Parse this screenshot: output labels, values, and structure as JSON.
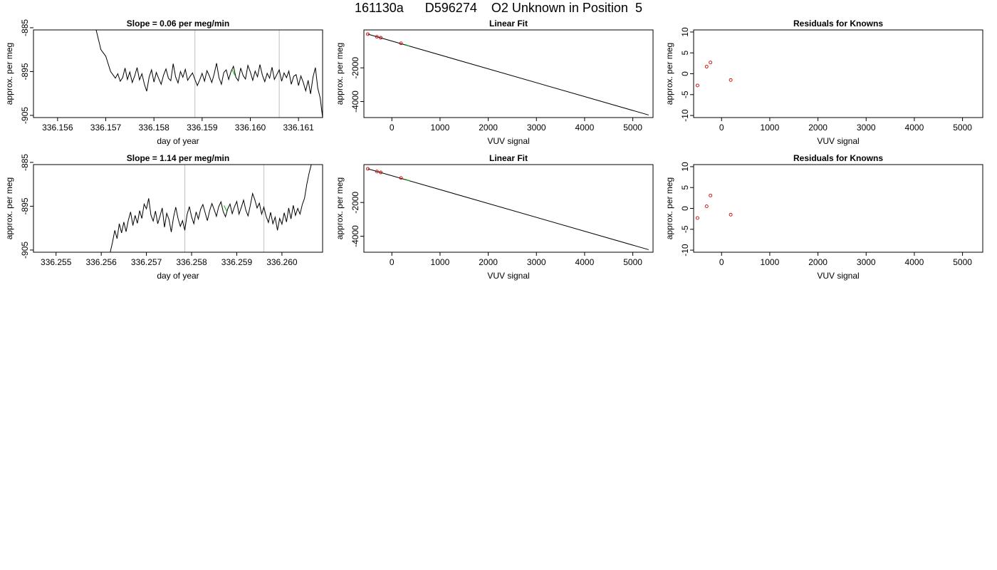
{
  "page": {
    "title": "161130a      D596274    O2 Unknown in Position  5"
  },
  "chart_data": [
    {
      "type": "line",
      "title": "Slope =  0.06  per meg/min",
      "xlabel": "day of year",
      "ylabel": "approx. per meg",
      "xlim": [
        336.1555,
        336.1615
      ],
      "ylim": [
        -905.5,
        -885.5
      ],
      "xticks": [
        "336.156",
        "336.157",
        "336.158",
        "336.159",
        "336.160",
        "336.161"
      ],
      "xtick_values": [
        336.156,
        336.157,
        336.158,
        336.159,
        336.16,
        336.161
      ],
      "yticks": [
        "-885",
        "-895",
        "-905"
      ],
      "ytick_values": [
        -885,
        -895,
        -905
      ],
      "vlines": [
        336.15885,
        336.1606
      ],
      "x": [
        336.1568,
        336.1569,
        336.157,
        336.1571,
        336.1572,
        336.15725,
        336.1573,
        336.15735,
        336.1574,
        336.15745,
        336.1575,
        336.15755,
        336.1576,
        336.15765,
        336.1577,
        336.15775,
        336.1578,
        336.15785,
        336.1579,
        336.15795,
        336.158,
        336.15805,
        336.1581,
        336.15815,
        336.1582,
        336.15825,
        336.1583,
        336.15835,
        336.1584,
        336.15845,
        336.1585,
        336.15855,
        336.1586,
        336.15865,
        336.1587,
        336.15875,
        336.1588,
        336.15885,
        336.1589,
        336.15895,
        336.159,
        336.15905,
        336.1591,
        336.15915,
        336.1592,
        336.15925,
        336.1593,
        336.15935,
        336.1594,
        336.15945,
        336.1595,
        336.15955,
        336.1596,
        336.15965,
        336.1597,
        336.15975,
        336.1598,
        336.15985,
        336.1599,
        336.15995,
        336.16,
        336.16005,
        336.1601,
        336.16015,
        336.1602,
        336.16025,
        336.1603,
        336.16035,
        336.1604,
        336.16045,
        336.1605,
        336.16055,
        336.1606,
        336.16065,
        336.1607,
        336.16075,
        336.1608,
        336.16085,
        336.1609,
        336.16095,
        336.161,
        336.16105,
        336.1611,
        336.16115,
        336.1612,
        336.16125,
        336.1613,
        336.16135,
        336.1614,
        336.16145,
        336.1615
      ],
      "y": [
        -885.5,
        -890.0,
        -891.5,
        -895.0,
        -896.5,
        -895.5,
        -897.2,
        -896.4,
        -894.2,
        -896.8,
        -895.1,
        -897.5,
        -896.0,
        -894.1,
        -896.9,
        -895.5,
        -897.8,
        -899.5,
        -896.3,
        -894.6,
        -897.4,
        -895.2,
        -896.6,
        -897.9,
        -895.8,
        -894.4,
        -896.5,
        -897.1,
        -893.2,
        -896.2,
        -897.6,
        -895.0,
        -896.3,
        -894.5,
        -897.0,
        -896.1,
        -895.3,
        -896.8,
        -898.2,
        -896.9,
        -895.4,
        -897.2,
        -894.8,
        -896.0,
        -897.5,
        -895.6,
        -893.1,
        -896.4,
        -897.9,
        -895.2,
        -894.6,
        -896.8,
        -895.0,
        -893.8,
        -896.3,
        -897.1,
        -894.2,
        -895.9,
        -896.7,
        -893.6,
        -895.1,
        -897.0,
        -894.9,
        -896.2,
        -893.4,
        -895.8,
        -897.3,
        -895.4,
        -896.5,
        -894.0,
        -896.8,
        -895.7,
        -894.6,
        -897.2,
        -895.3,
        -896.4,
        -894.9,
        -897.9,
        -896.1,
        -895.7,
        -898.2,
        -896.0,
        -897.5,
        -899.4,
        -897.0,
        -900.1,
        -896.3,
        -894.1,
        -898.8,
        -901.0,
        -905.5
      ],
      "marker": {
        "x": 336.15965,
        "y": -895.2
      }
    },
    {
      "type": "scatter",
      "title": "Linear Fit",
      "xlabel": "VUV signal",
      "ylabel": "approx. per meg",
      "xlim": [
        -580,
        5420
      ],
      "ylim": [
        -4950,
        250
      ],
      "xticks": [
        "0",
        "1000",
        "2000",
        "3000",
        "4000",
        "5000"
      ],
      "xtick_values": [
        0,
        1000,
        2000,
        3000,
        4000,
        5000
      ],
      "yticks": [
        "-2000",
        "-4000"
      ],
      "ytick_values": [
        -2000,
        -4000
      ],
      "fit_line": {
        "x": [
          -500,
          5330
        ],
        "y": [
          0,
          -4800
        ]
      },
      "points": {
        "x": [
          -500,
          -310,
          -230,
          190
        ],
        "y": [
          0,
          -160,
          -215,
          -545
        ]
      },
      "unknown_point": {
        "x": 320,
        "y": -660
      }
    },
    {
      "type": "scatter",
      "title": "Residuals for Knowns",
      "xlabel": "VUV signal",
      "ylabel": "approx. per meg",
      "xlim": [
        -580,
        5420
      ],
      "ylim": [
        -10.5,
        10.5
      ],
      "xticks": [
        "0",
        "1000",
        "2000",
        "3000",
        "4000",
        "5000"
      ],
      "xtick_values": [
        0,
        1000,
        2000,
        3000,
        4000,
        5000
      ],
      "yticks": [
        "-10",
        "-5",
        "0",
        "5",
        "10"
      ],
      "ytick_values": [
        -10,
        -5,
        0,
        5,
        10
      ],
      "points": {
        "x": [
          -500,
          -310,
          -230,
          190
        ],
        "y": [
          -2.8,
          1.7,
          2.7,
          -1.5
        ]
      }
    },
    {
      "type": "line",
      "title": "Slope =  1.14  per meg/min",
      "xlabel": "day of year",
      "ylabel": "approx. per meg",
      "xlim": [
        336.2545,
        336.2609
      ],
      "ylim": [
        -905.5,
        -885.5
      ],
      "xticks": [
        "336.255",
        "336.256",
        "336.257",
        "336.258",
        "336.259",
        "336.260"
      ],
      "xtick_values": [
        336.255,
        336.256,
        336.257,
        336.258,
        336.259,
        336.26
      ],
      "yticks": [
        "-885",
        "-895",
        "-905"
      ],
      "ytick_values": [
        -885,
        -895,
        -905
      ],
      "vlines": [
        336.25785,
        336.2596
      ],
      "x": [
        336.2562,
        336.25625,
        336.2563,
        336.25635,
        336.2564,
        336.25645,
        336.2565,
        336.25655,
        336.2566,
        336.25665,
        336.2567,
        336.25675,
        336.2568,
        336.25685,
        336.2569,
        336.25695,
        336.257,
        336.25705,
        336.2571,
        336.25715,
        336.2572,
        336.25725,
        336.2573,
        336.25735,
        336.2574,
        336.25745,
        336.2575,
        336.25755,
        336.2576,
        336.25765,
        336.2577,
        336.25775,
        336.2578,
        336.25785,
        336.2579,
        336.25795,
        336.258,
        336.25805,
        336.2581,
        336.25815,
        336.2582,
        336.25825,
        336.2583,
        336.25835,
        336.2584,
        336.25845,
        336.2585,
        336.25855,
        336.2586,
        336.25865,
        336.2587,
        336.25875,
        336.2588,
        336.25885,
        336.2589,
        336.25895,
        336.259,
        336.25905,
        336.2591,
        336.25915,
        336.2592,
        336.25925,
        336.2593,
        336.25935,
        336.2594,
        336.25945,
        336.2595,
        336.25955,
        336.2596,
        336.25965,
        336.2597,
        336.25975,
        336.2598,
        336.25985,
        336.2599,
        336.25995,
        336.26,
        336.26005,
        336.2601,
        336.26015,
        336.2602,
        336.26025,
        336.2603,
        336.26035,
        336.2604,
        336.26045,
        336.2605,
        336.26055,
        336.2606,
        336.26065
      ],
      "y": [
        -905.5,
        -903.2,
        -900.5,
        -902.4,
        -899.0,
        -901.1,
        -898.6,
        -900.8,
        -898.2,
        -896.3,
        -899.4,
        -897.1,
        -898.9,
        -896.0,
        -897.8,
        -894.5,
        -895.6,
        -893.2,
        -897.0,
        -898.4,
        -896.1,
        -899.0,
        -897.3,
        -895.4,
        -899.8,
        -896.6,
        -898.0,
        -900.9,
        -897.5,
        -895.2,
        -897.8,
        -899.6,
        -898.3,
        -900.5,
        -896.9,
        -895.1,
        -897.4,
        -899.0,
        -896.3,
        -897.9,
        -895.7,
        -894.6,
        -896.5,
        -898.3,
        -896.0,
        -894.4,
        -895.8,
        -897.3,
        -895.1,
        -894.0,
        -896.2,
        -897.4,
        -895.6,
        -894.5,
        -896.7,
        -895.1,
        -893.9,
        -896.8,
        -895.3,
        -893.6,
        -895.9,
        -897.2,
        -894.8,
        -892.1,
        -893.5,
        -895.4,
        -894.3,
        -896.8,
        -895.2,
        -897.3,
        -898.7,
        -896.4,
        -899.0,
        -897.5,
        -900.5,
        -897.8,
        -899.1,
        -896.5,
        -898.6,
        -895.4,
        -897.9,
        -894.8,
        -897.1,
        -895.5,
        -896.8,
        -894.6,
        -893.2,
        -890.0,
        -887.5,
        -885.5
      ],
      "marker": {
        "x": 336.25875,
        "y": -895.5
      }
    },
    {
      "type": "scatter",
      "title": "Linear Fit",
      "xlabel": "VUV signal",
      "ylabel": "approx. per meg",
      "xlim": [
        -580,
        5420
      ],
      "ylim": [
        -4950,
        250
      ],
      "xticks": [
        "0",
        "1000",
        "2000",
        "3000",
        "4000",
        "5000"
      ],
      "xtick_values": [
        0,
        1000,
        2000,
        3000,
        4000,
        5000
      ],
      "yticks": [
        "-2000",
        "-4000"
      ],
      "ytick_values": [
        -2000,
        -4000
      ],
      "fit_line": {
        "x": [
          -500,
          5330
        ],
        "y": [
          0,
          -4800
        ]
      },
      "points": {
        "x": [
          -500,
          -310,
          -230,
          190
        ],
        "y": [
          0,
          -160,
          -215,
          -545
        ]
      },
      "unknown_point": {
        "x": 320,
        "y": -660
      }
    },
    {
      "type": "scatter",
      "title": "Residuals for Knowns",
      "xlabel": "VUV signal",
      "ylabel": "approx. per meg",
      "xlim": [
        -580,
        5420
      ],
      "ylim": [
        -10.5,
        10.5
      ],
      "xticks": [
        "0",
        "1000",
        "2000",
        "3000",
        "4000",
        "5000"
      ],
      "xtick_values": [
        0,
        1000,
        2000,
        3000,
        4000,
        5000
      ],
      "yticks": [
        "-10",
        "-5",
        "0",
        "5",
        "10"
      ],
      "ytick_values": [
        -10,
        -5,
        0,
        5,
        10
      ],
      "points": {
        "x": [
          -500,
          -310,
          -230,
          190
        ],
        "y": [
          -2.3,
          0.5,
          3.1,
          -1.5
        ]
      }
    }
  ],
  "colors": {
    "line": "#000000",
    "vline": "#c8c8c8",
    "known_point": "#cc0000",
    "unknown_point": "#00c000"
  }
}
